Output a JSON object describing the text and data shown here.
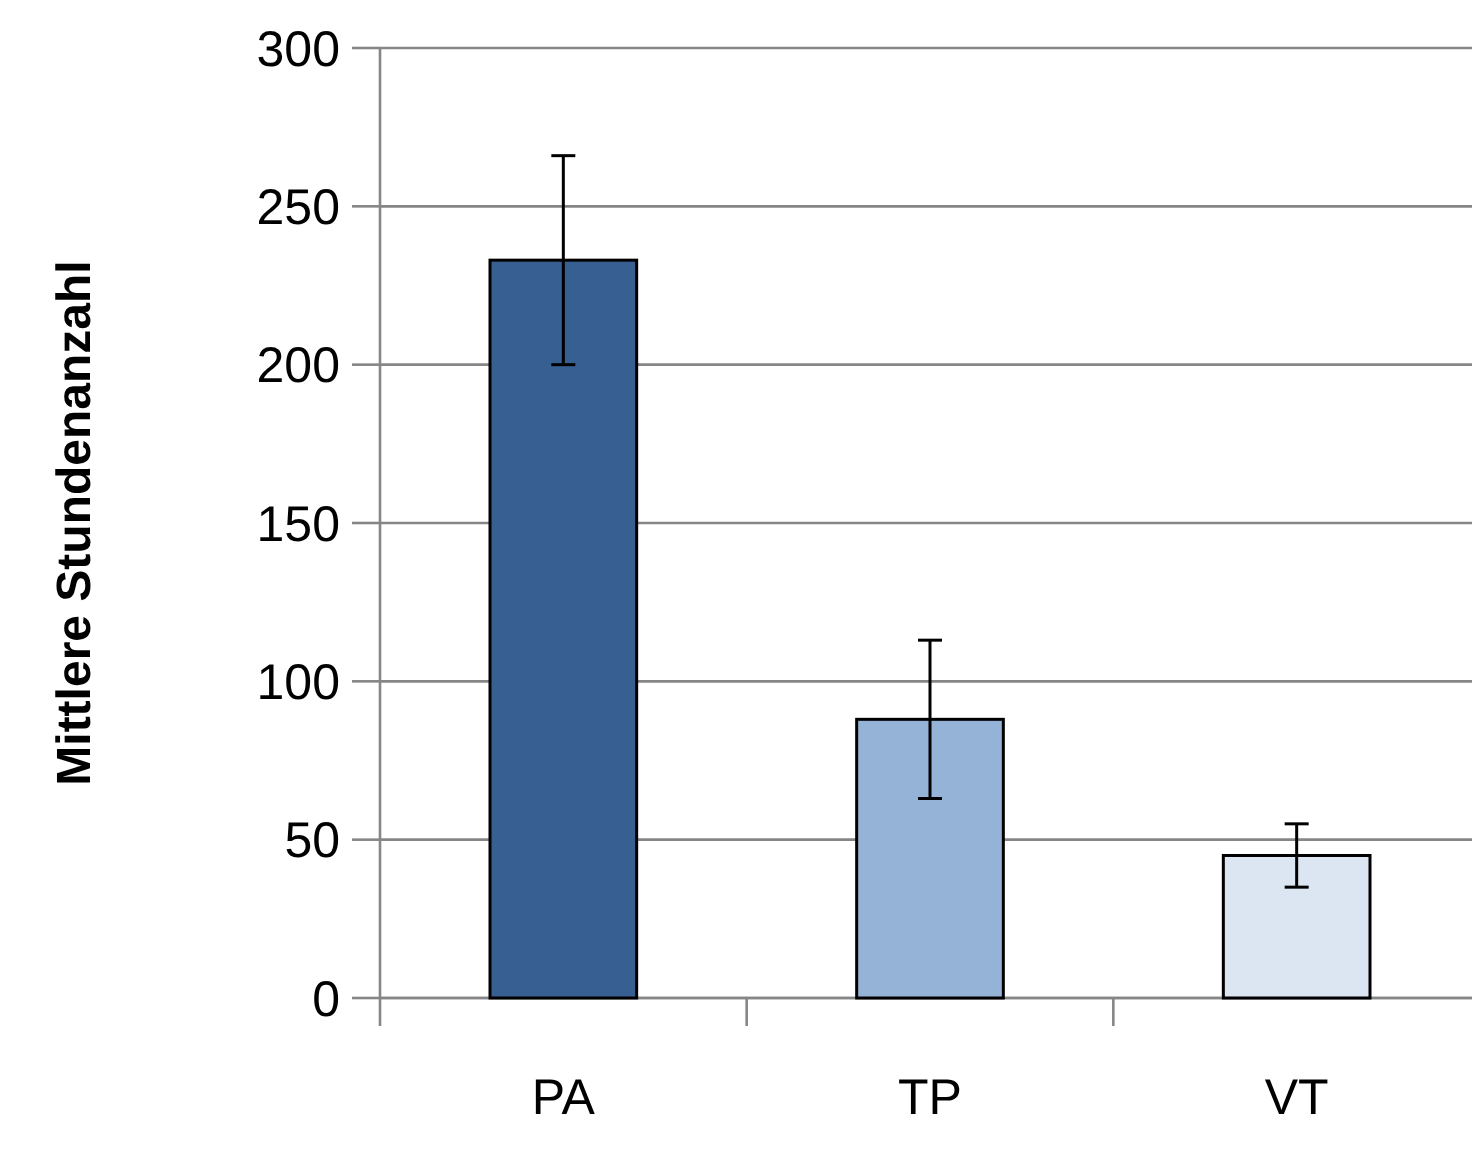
{
  "chart_data": {
    "type": "bar",
    "ylabel": "Mittlere Stundenanzahl",
    "categories": [
      "PA",
      "TP",
      "VT"
    ],
    "values": [
      233,
      88,
      45
    ],
    "errors": [
      33,
      25,
      10
    ],
    "colors": [
      "#375f91",
      "#95b3d7",
      "#dce6f2"
    ],
    "ylim": [
      0,
      300
    ],
    "yticks": [
      0,
      50,
      100,
      150,
      200,
      250,
      300
    ],
    "grid": "y"
  }
}
